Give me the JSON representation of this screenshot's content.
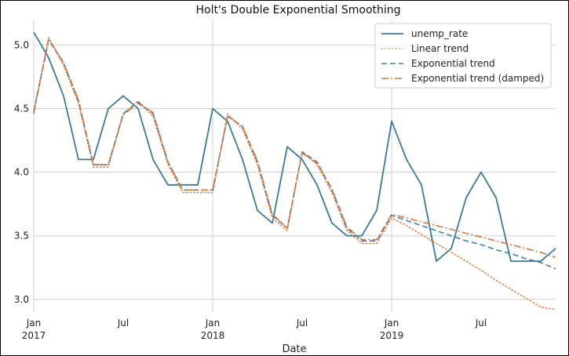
{
  "chart_data": {
    "type": "line",
    "title": "Holt's Double Exponential Smoothing",
    "xlabel": "Date",
    "ylabel": "",
    "ylim": [
      2.9,
      5.2
    ],
    "xlim": [
      "2017-01",
      "2019-12"
    ],
    "yticks": [
      3.0,
      3.5,
      4.0,
      4.5,
      5.0
    ],
    "ytick_labels": [
      "3.0",
      "3.5",
      "4.0",
      "4.5",
      "5.0"
    ],
    "xticks": [
      {
        "date": "2017-01",
        "line1": "Jan",
        "line2": "2017"
      },
      {
        "date": "2017-07",
        "line1": "Jul",
        "line2": ""
      },
      {
        "date": "2018-01",
        "line1": "Jan",
        "line2": "2018"
      },
      {
        "date": "2018-07",
        "line1": "Jul",
        "line2": ""
      },
      {
        "date": "2019-01",
        "line1": "Jan",
        "line2": "2019"
      },
      {
        "date": "2019-07",
        "line1": "Jul",
        "line2": ""
      }
    ],
    "grid": true,
    "legend_position": "top-right",
    "x": [
      "2017-01",
      "2017-02",
      "2017-03",
      "2017-04",
      "2017-05",
      "2017-06",
      "2017-07",
      "2017-08",
      "2017-09",
      "2017-10",
      "2017-11",
      "2017-12",
      "2018-01",
      "2018-02",
      "2018-03",
      "2018-04",
      "2018-05",
      "2018-06",
      "2018-07",
      "2018-08",
      "2018-09",
      "2018-10",
      "2018-11",
      "2018-12",
      "2019-01",
      "2019-02",
      "2019-03",
      "2019-04",
      "2019-05",
      "2019-06",
      "2019-07",
      "2019-08",
      "2019-09",
      "2019-10",
      "2019-11",
      "2019-12"
    ],
    "series": [
      {
        "name": "unemp_rate",
        "color": "#3b7a96",
        "style": "solid",
        "values": [
          5.1,
          4.9,
          4.6,
          4.1,
          4.1,
          4.5,
          4.6,
          4.5,
          4.1,
          3.9,
          3.9,
          3.9,
          4.5,
          4.4,
          4.1,
          3.7,
          3.6,
          4.2,
          4.1,
          3.9,
          3.6,
          3.5,
          3.5,
          3.7,
          4.4,
          4.1,
          3.9,
          3.3,
          3.4,
          3.8,
          4.0,
          3.8,
          3.3,
          3.3,
          3.3,
          3.4
        ]
      },
      {
        "name": "Linear trend",
        "color": "#d98b55",
        "style": "dotted",
        "values": [
          4.46,
          5.06,
          4.84,
          4.54,
          4.04,
          4.04,
          4.46,
          4.56,
          4.44,
          4.06,
          3.84,
          3.84,
          3.84,
          4.46,
          4.34,
          4.06,
          3.64,
          3.54,
          4.16,
          4.06,
          3.84,
          3.54,
          3.44,
          3.44,
          3.64,
          3.58,
          3.51,
          3.44,
          3.37,
          3.3,
          3.23,
          3.15,
          3.08,
          3.01,
          2.94,
          2.92
        ]
      },
      {
        "name": "Exponential trend",
        "color": "#3f7fa0",
        "style": "dashed",
        "values": [
          4.47,
          5.04,
          4.86,
          4.56,
          4.06,
          4.06,
          4.46,
          4.55,
          4.46,
          4.08,
          3.86,
          3.86,
          3.86,
          4.44,
          4.36,
          4.08,
          3.66,
          3.56,
          4.16,
          4.08,
          3.86,
          3.56,
          3.46,
          3.46,
          3.66,
          3.62,
          3.58,
          3.54,
          3.5,
          3.46,
          3.43,
          3.39,
          3.36,
          3.32,
          3.29,
          3.24
        ]
      },
      {
        "name": "Exponential trend (damped)",
        "color": "#d9783f",
        "style": "dashdot",
        "values": [
          4.48,
          5.05,
          4.86,
          4.57,
          4.06,
          4.06,
          4.45,
          4.54,
          4.47,
          4.08,
          3.86,
          3.86,
          3.86,
          4.44,
          4.36,
          4.09,
          3.67,
          3.56,
          4.15,
          4.07,
          3.87,
          3.57,
          3.47,
          3.47,
          3.67,
          3.64,
          3.61,
          3.58,
          3.55,
          3.52,
          3.49,
          3.46,
          3.43,
          3.4,
          3.37,
          3.33
        ]
      }
    ]
  }
}
